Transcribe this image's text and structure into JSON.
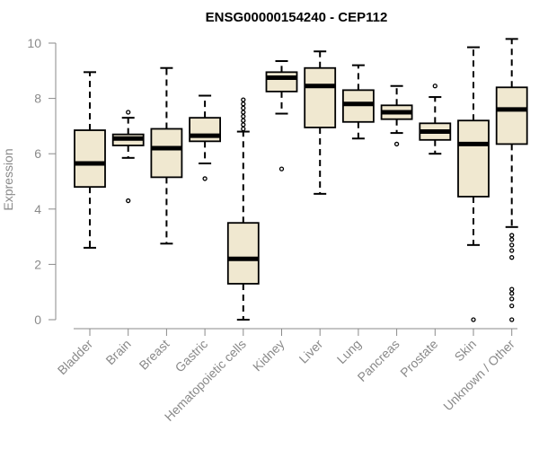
{
  "chart_data": {
    "type": "box",
    "title": "ENSG00000154240 - CEP112",
    "xlabel": "",
    "ylabel": "Expression",
    "ylim": [
      0,
      10
    ],
    "yticks": [
      0,
      2,
      4,
      6,
      8,
      10
    ],
    "grid": false,
    "box_fill": "#f0e8d0",
    "box_stroke": "#000000",
    "categories": [
      "Bladder",
      "Brain",
      "Breast",
      "Gastric",
      "Hematopoietic cells",
      "Kidney",
      "Liver",
      "Lung",
      "Pancreas",
      "Prostate",
      "Skin",
      "Unknown / Other"
    ],
    "boxes": [
      {
        "whisker_low": 2.6,
        "q1": 4.8,
        "median": 5.65,
        "q3": 6.85,
        "whisker_high": 8.95,
        "outliers": []
      },
      {
        "whisker_low": 5.85,
        "q1": 6.3,
        "median": 6.55,
        "q3": 6.7,
        "whisker_high": 7.3,
        "outliers": [
          4.3,
          7.5
        ]
      },
      {
        "whisker_low": 2.75,
        "q1": 5.15,
        "median": 6.2,
        "q3": 6.9,
        "whisker_high": 9.1,
        "outliers": []
      },
      {
        "whisker_low": 5.65,
        "q1": 6.45,
        "median": 6.65,
        "q3": 7.3,
        "whisker_high": 8.1,
        "outliers": [
          5.1
        ]
      },
      {
        "whisker_low": 0.0,
        "q1": 1.3,
        "median": 2.2,
        "q3": 3.5,
        "whisker_high": 6.8,
        "outliers": [
          6.9,
          7.05,
          7.2,
          7.35,
          7.5,
          7.65,
          7.8,
          7.95
        ]
      },
      {
        "whisker_low": 7.45,
        "q1": 8.25,
        "median": 8.75,
        "q3": 8.95,
        "whisker_high": 9.35,
        "outliers": [
          5.45
        ]
      },
      {
        "whisker_low": 4.55,
        "q1": 6.95,
        "median": 8.45,
        "q3": 9.1,
        "whisker_high": 9.7,
        "outliers": []
      },
      {
        "whisker_low": 6.55,
        "q1": 7.15,
        "median": 7.8,
        "q3": 8.3,
        "whisker_high": 9.2,
        "outliers": []
      },
      {
        "whisker_low": 6.75,
        "q1": 7.25,
        "median": 7.5,
        "q3": 7.75,
        "whisker_high": 8.45,
        "outliers": [
          6.35
        ]
      },
      {
        "whisker_low": 6.0,
        "q1": 6.5,
        "median": 6.8,
        "q3": 7.1,
        "whisker_high": 8.05,
        "outliers": [
          8.45
        ]
      },
      {
        "whisker_low": 2.7,
        "q1": 4.45,
        "median": 6.35,
        "q3": 7.2,
        "whisker_high": 9.85,
        "outliers": [
          0.0
        ]
      },
      {
        "whisker_low": 3.35,
        "q1": 6.35,
        "median": 7.6,
        "q3": 8.4,
        "whisker_high": 10.15,
        "outliers": [
          0.0,
          0.5,
          0.75,
          0.95,
          1.1,
          2.25,
          2.5,
          2.7,
          2.9,
          3.05
        ]
      }
    ]
  }
}
